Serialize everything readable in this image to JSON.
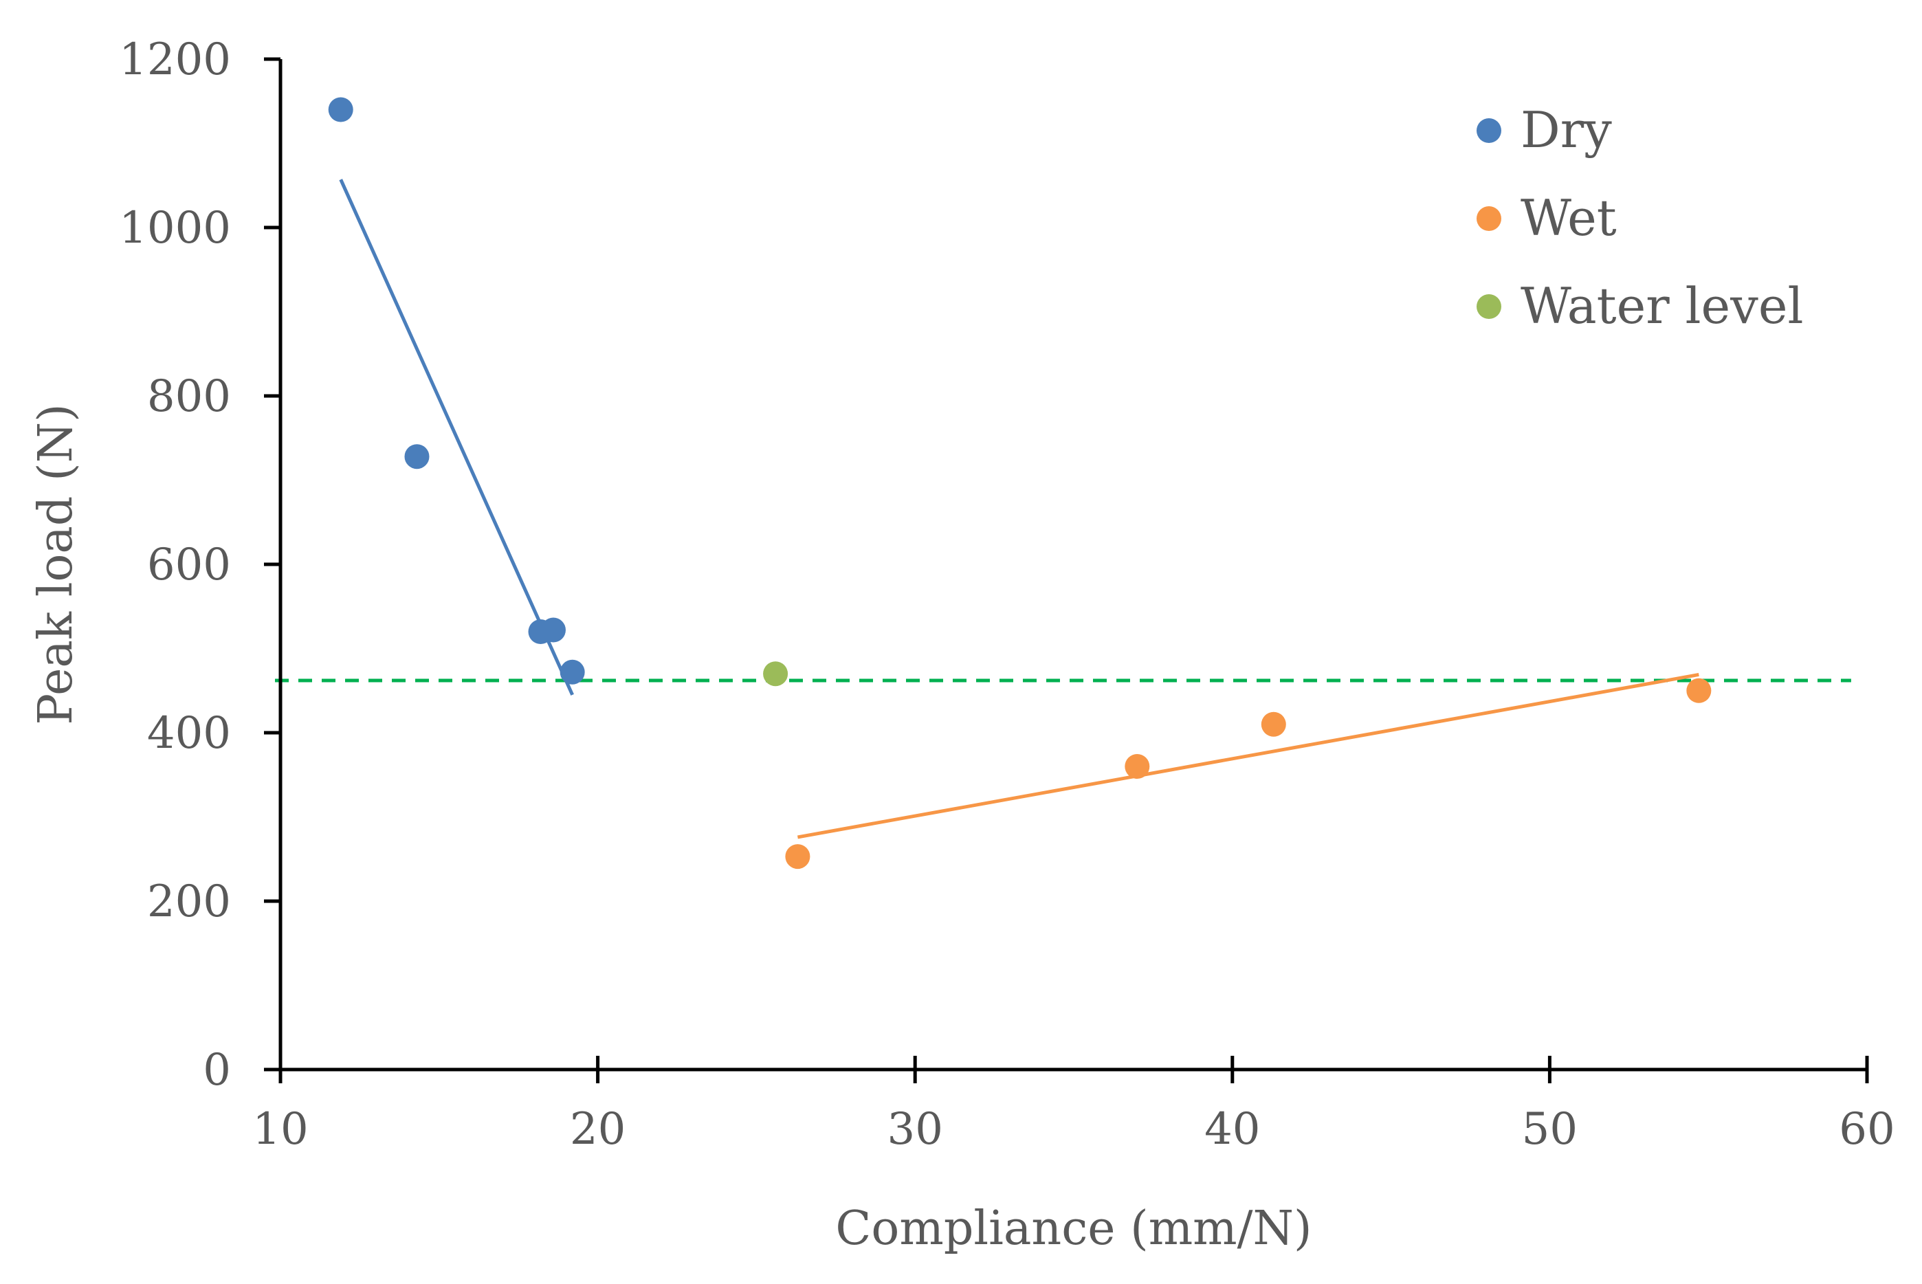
{
  "chart_data": {
    "type": "scatter",
    "title": "",
    "xlabel": "Compliance (mm/N)",
    "ylabel": "Peak load (N)",
    "xlim": [
      10,
      60
    ],
    "ylim": [
      0,
      1200
    ],
    "x_ticks": [
      10,
      20,
      30,
      40,
      50,
      60
    ],
    "y_ticks": [
      0,
      200,
      400,
      600,
      800,
      1000,
      1200
    ],
    "x_tick_labels": [
      "10",
      "20",
      "30",
      "40",
      "50",
      "60"
    ],
    "y_tick_labels": [
      "0",
      "200",
      "400",
      "600",
      "800",
      "1000",
      "1200"
    ],
    "grid": false,
    "legend_position": "top-right",
    "series": [
      {
        "name": "Dry",
        "color": "#4a7ebb",
        "points": [
          {
            "x": 11.9,
            "y": 1140
          },
          {
            "x": 14.3,
            "y": 728
          },
          {
            "x": 18.2,
            "y": 520
          },
          {
            "x": 18.6,
            "y": 522
          },
          {
            "x": 19.2,
            "y": 472
          }
        ],
        "trendline": {
          "x": [
            11.9,
            19.2
          ],
          "y": [
            1057,
            445
          ]
        }
      },
      {
        "name": "Wet",
        "color": "#f79646",
        "points": [
          {
            "x": 26.3,
            "y": 253
          },
          {
            "x": 37.0,
            "y": 360
          },
          {
            "x": 41.3,
            "y": 410
          },
          {
            "x": 54.7,
            "y": 450
          }
        ],
        "trendline": {
          "x": [
            26.3,
            54.7
          ],
          "y": [
            276,
            469
          ]
        }
      },
      {
        "name": "Water level",
        "color": "#9bbb59",
        "points": [
          {
            "x": 25.6,
            "y": 470
          }
        ]
      }
    ],
    "reference_line": {
      "style": "dashed",
      "color": "#00b050",
      "y": 462,
      "x_range": [
        10,
        59.5
      ]
    }
  }
}
